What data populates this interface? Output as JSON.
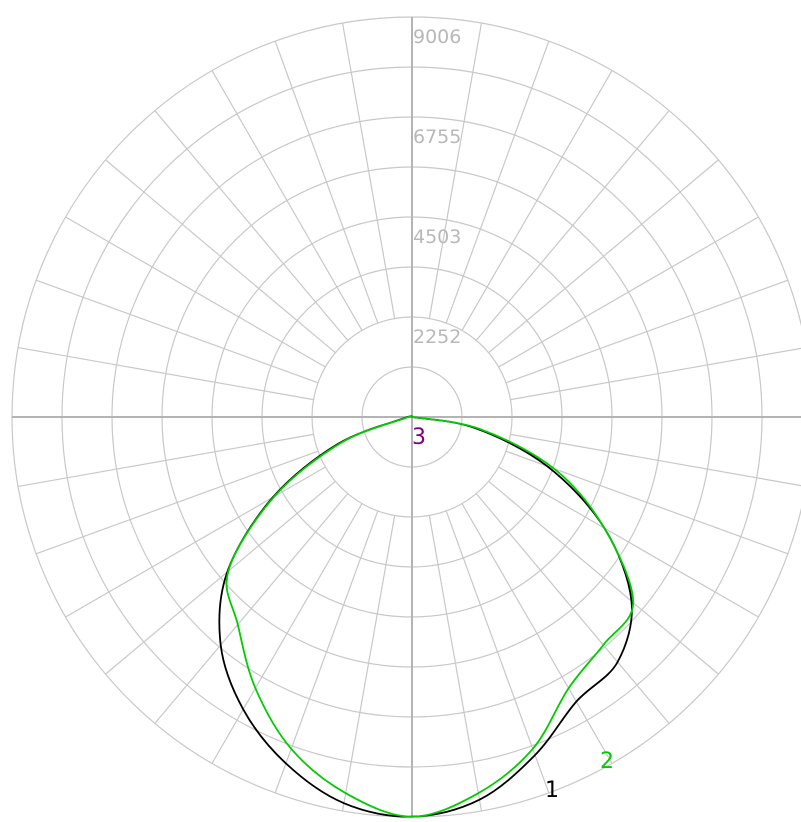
{
  "chart_data": {
    "type": "polar",
    "r_ticks": [
      2252,
      4503,
      6755,
      9006
    ],
    "r_max": 9006,
    "angle_step_deg": 10,
    "series": [
      {
        "label": "1",
        "color": "#000000",
        "angles_deg": [
          -90,
          -80,
          -70,
          -60,
          -50,
          -40,
          -30,
          -20,
          -10,
          0,
          10,
          20,
          30,
          40,
          50,
          60,
          70,
          80,
          90
        ],
        "values": [
          0,
          200,
          1780,
          3620,
          5430,
          6700,
          7600,
          8300,
          8830,
          9000,
          8750,
          8100,
          7400,
          7200,
          6450,
          5000,
          3240,
          1450,
          0
        ]
      },
      {
        "label": "2",
        "color": "#00cc00",
        "angles_deg": [
          -90,
          -80,
          -70,
          -60,
          -50,
          -40,
          -30,
          -20,
          -10,
          0,
          10,
          20,
          30,
          40,
          50,
          60,
          70,
          80,
          90
        ],
        "values": [
          0,
          160,
          1700,
          3580,
          5400,
          6100,
          7050,
          7950,
          8600,
          9000,
          8600,
          7950,
          7050,
          6700,
          6500,
          5000,
          3400,
          1550,
          0
        ]
      },
      {
        "label": "3",
        "color": "#800080",
        "angles_deg": [],
        "values": []
      }
    ]
  }
}
